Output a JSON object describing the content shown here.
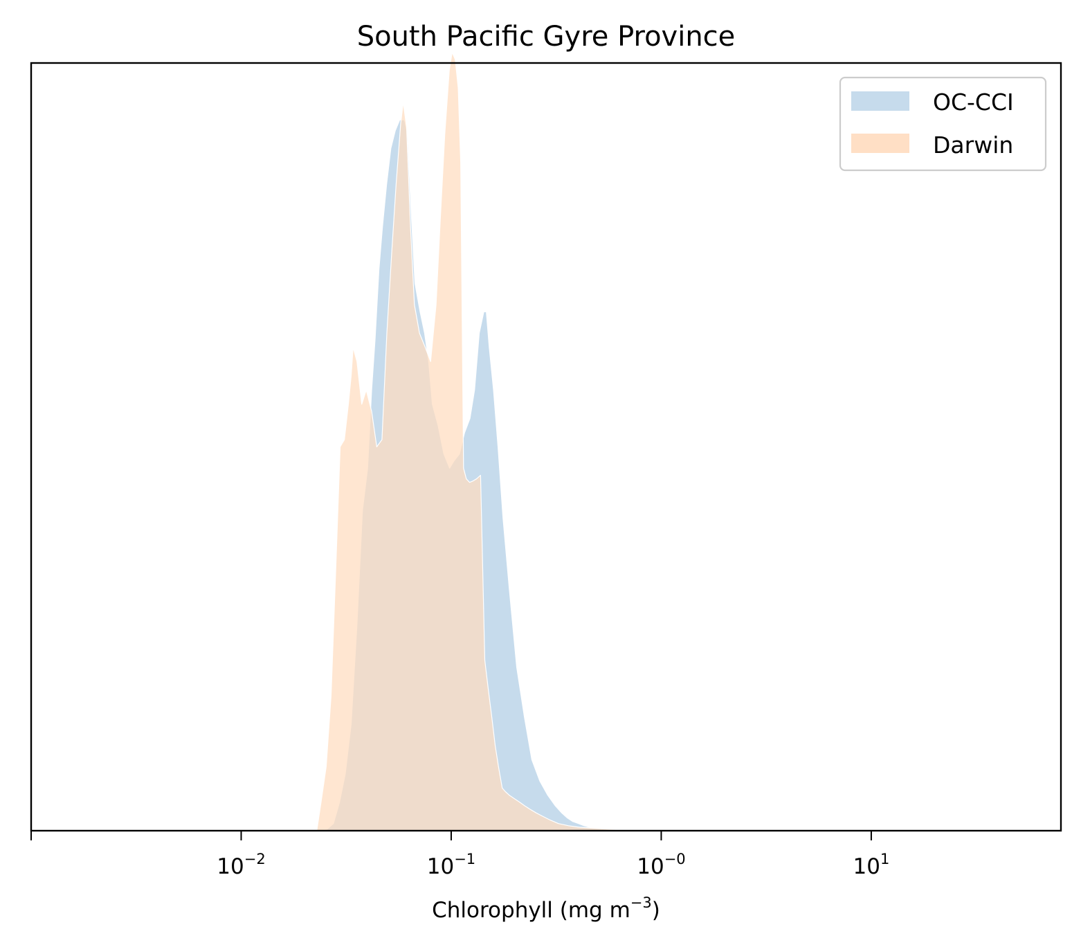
{
  "chart_data": {
    "type": "area",
    "title": "South Pacific Gyre Province",
    "xlabel": {
      "base": "Chlorophyll  (mg m",
      "exponent": "−3",
      "suffix": ")"
    },
    "ylabel": "",
    "x_scale": "log",
    "xlim": [
      0.001,
      80
    ],
    "ylim": [
      0,
      1.08
    ],
    "y_ticks_shown": false,
    "grid": false,
    "legend": "top-right",
    "x_ticks": [
      {
        "value": 0.01,
        "base": "10",
        "exp": "−2"
      },
      {
        "value": 0.1,
        "base": "10",
        "exp": "−1"
      },
      {
        "value": 1,
        "base": "10",
        "exp": "−0"
      },
      {
        "value": 10,
        "base": "10",
        "exp": "1"
      }
    ],
    "x_minor_ticks": [
      0.001
    ],
    "series": [
      {
        "name": "OC-CCI",
        "color": "#c6dbec",
        "x": [
          0.0234,
          0.0256,
          0.0275,
          0.0294,
          0.0313,
          0.0334,
          0.0356,
          0.0378,
          0.04,
          0.0418,
          0.0434,
          0.0453,
          0.0471,
          0.0493,
          0.0516,
          0.0542,
          0.0569,
          0.0599,
          0.062,
          0.0642,
          0.0672,
          0.0711,
          0.0747,
          0.0781,
          0.0813,
          0.0866,
          0.0922,
          0.0983,
          0.103,
          0.1095,
          0.1158,
          0.1229,
          0.1292,
          0.136,
          0.143,
          0.147,
          0.1517,
          0.159,
          0.167,
          0.1765,
          0.189,
          0.205,
          0.223,
          0.242,
          0.264,
          0.288,
          0.313,
          0.336,
          0.357,
          0.379,
          0.404,
          0.429,
          0.455,
          0.482,
          0.515,
          0.554,
          0.596,
          0.644,
          0.7,
          0.77
        ],
        "values": [
          0.0,
          0.002,
          0.01,
          0.04,
          0.08,
          0.15,
          0.29,
          0.45,
          0.51,
          0.62,
          0.69,
          0.79,
          0.85,
          0.91,
          0.96,
          0.985,
          1.0,
          1.0,
          0.98,
          0.88,
          0.77,
          0.73,
          0.7,
          0.66,
          0.6,
          0.57,
          0.53,
          0.51,
          0.52,
          0.53,
          0.56,
          0.58,
          0.62,
          0.7,
          0.73,
          0.73,
          0.68,
          0.62,
          0.54,
          0.44,
          0.34,
          0.23,
          0.16,
          0.1,
          0.07,
          0.05,
          0.035,
          0.025,
          0.018,
          0.013,
          0.01,
          0.007,
          0.005,
          0.004,
          0.003,
          0.002,
          0.0015,
          0.001,
          0.0005,
          0.0
        ]
      },
      {
        "name": "Darwin",
        "color": "#ffdcbf",
        "x": [
          0.0229,
          0.024,
          0.0254,
          0.0268,
          0.0283,
          0.0296,
          0.031,
          0.0324,
          0.0334,
          0.0341,
          0.0356,
          0.0375,
          0.0394,
          0.0418,
          0.0442,
          0.0468,
          0.0494,
          0.052,
          0.0547,
          0.0575,
          0.0591,
          0.0613,
          0.064,
          0.0668,
          0.0706,
          0.0752,
          0.0798,
          0.0847,
          0.0887,
          0.0932,
          0.0979,
          0.101,
          0.1045,
          0.108,
          0.111,
          0.1145,
          0.118,
          0.1223,
          0.1269,
          0.132,
          0.138,
          0.1445,
          0.15,
          0.156,
          0.162,
          0.168,
          0.175,
          0.181,
          0.189,
          0.2,
          0.212,
          0.224,
          0.238,
          0.254,
          0.274,
          0.296,
          0.324,
          0.362,
          0.405,
          0.454,
          0.51,
          0.576,
          0.652,
          0.74
        ],
        "values": [
          0.0,
          0.04,
          0.09,
          0.19,
          0.38,
          0.54,
          0.55,
          0.6,
          0.64,
          0.68,
          0.66,
          0.6,
          0.62,
          0.59,
          0.54,
          0.55,
          0.7,
          0.81,
          0.91,
          0.995,
          1.025,
          0.99,
          0.85,
          0.74,
          0.7,
          0.68,
          0.66,
          0.74,
          0.86,
          0.98,
          1.07,
          1.095,
          1.085,
          1.045,
          0.94,
          0.51,
          0.495,
          0.49,
          0.492,
          0.495,
          0.5,
          0.24,
          0.2,
          0.16,
          0.12,
          0.09,
          0.06,
          0.055,
          0.05,
          0.045,
          0.04,
          0.035,
          0.03,
          0.025,
          0.02,
          0.015,
          0.01,
          0.007,
          0.005,
          0.004,
          0.003,
          0.002,
          0.001,
          0.0
        ]
      }
    ]
  }
}
